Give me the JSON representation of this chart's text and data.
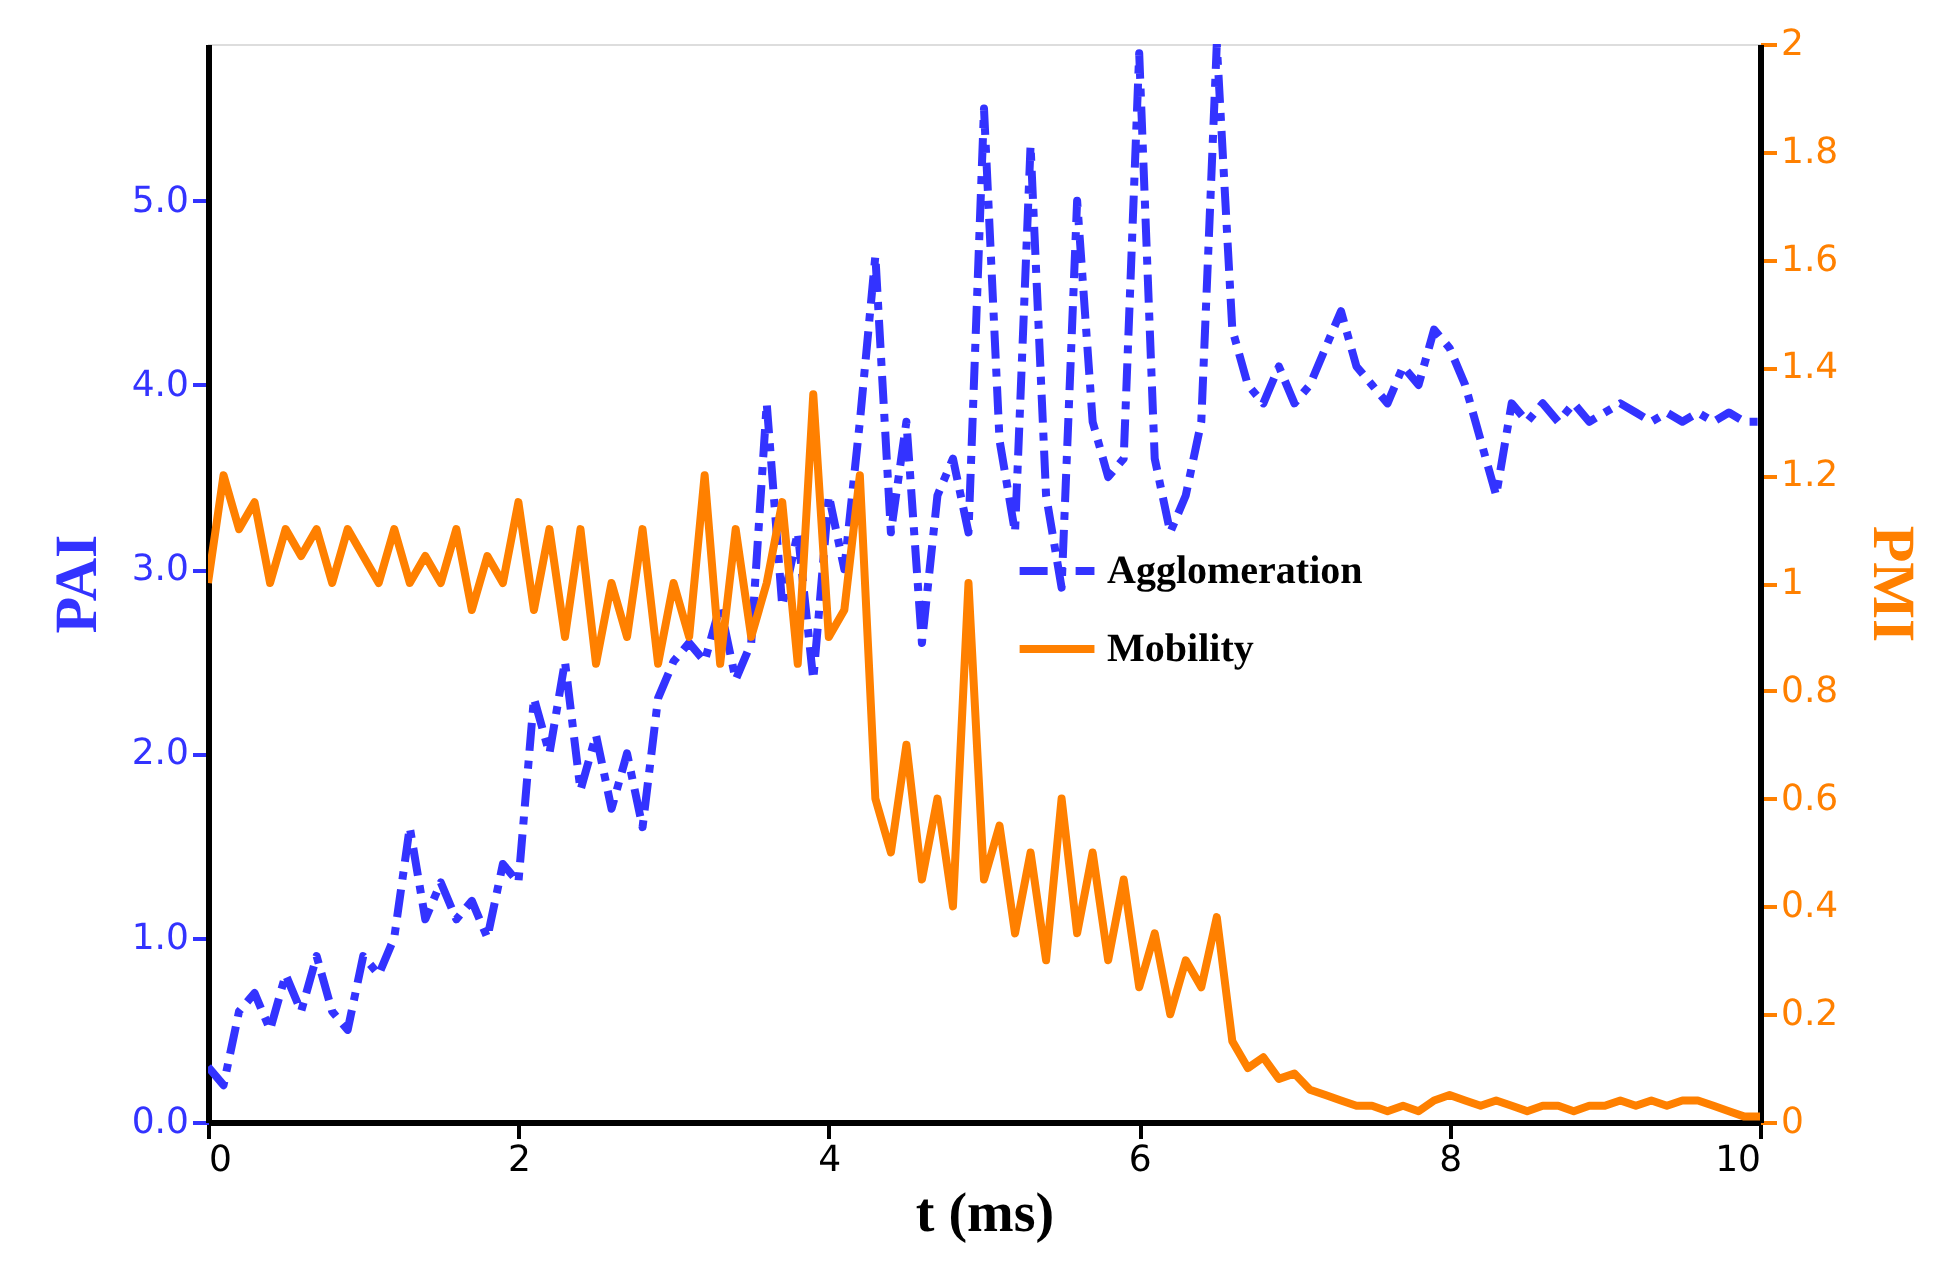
{
  "chart_data": {
    "type": "line",
    "xlabel": "t (ms)",
    "ylabel": "PAI",
    "y2label": "PMI",
    "x": [
      0,
      0.1,
      0.2,
      0.3,
      0.4,
      0.5,
      0.6,
      0.7,
      0.8,
      0.9,
      1,
      1.1,
      1.2,
      1.3,
      1.4,
      1.5,
      1.6,
      1.7,
      1.8,
      1.9,
      2,
      2.1,
      2.2,
      2.3,
      2.4,
      2.5,
      2.6,
      2.7,
      2.8,
      2.9,
      3,
      3.1,
      3.2,
      3.3,
      3.4,
      3.5,
      3.6,
      3.7,
      3.8,
      3.9,
      4,
      4.1,
      4.2,
      4.3,
      4.4,
      4.5,
      4.6,
      4.7,
      4.8,
      4.9,
      5,
      5.1,
      5.2,
      5.3,
      5.4,
      5.5,
      5.6,
      5.7,
      5.8,
      5.9,
      6,
      6.1,
      6.2,
      6.3,
      6.4,
      6.5,
      6.6,
      6.7,
      6.8,
      6.9,
      7,
      7.1,
      7.2,
      7.3,
      7.4,
      7.5,
      7.6,
      7.7,
      7.8,
      7.9,
      8,
      8.1,
      8.2,
      8.3,
      8.4,
      8.5,
      8.6,
      8.7,
      8.8,
      8.9,
      9,
      9.1,
      9.2,
      9.3,
      9.4,
      9.5,
      9.6,
      9.7,
      9.8,
      9.9,
      10
    ],
    "series": [
      {
        "name": "Agglomeration",
        "color": "#3333ff",
        "line_style": "dashed",
        "values": [
          0.3,
          0.2,
          0.6,
          0.7,
          0.5,
          0.8,
          0.6,
          0.9,
          0.6,
          0.5,
          0.9,
          0.8,
          1.0,
          1.6,
          1.1,
          1.3,
          1.1,
          1.2,
          1.0,
          1.4,
          1.3,
          2.3,
          2.0,
          2.5,
          1.8,
          2.1,
          1.7,
          2.0,
          1.6,
          2.3,
          2.5,
          2.6,
          2.5,
          2.8,
          2.4,
          2.6,
          3.9,
          2.8,
          3.2,
          2.4,
          3.4,
          3.0,
          3.8,
          4.7,
          3.2,
          3.8,
          2.6,
          3.4,
          3.6,
          3.2,
          5.5,
          3.7,
          3.2,
          5.3,
          3.4,
          2.9,
          5.0,
          3.8,
          3.5,
          3.6,
          5.8,
          3.6,
          3.2,
          3.4,
          3.8,
          5.85,
          4.3,
          4.0,
          3.9,
          4.1,
          3.9,
          4.0,
          4.2,
          4.4,
          4.1,
          4.0,
          3.9,
          4.1,
          4.0,
          4.3,
          4.2,
          4.0,
          3.7,
          3.4,
          3.9,
          3.8,
          3.9,
          3.8,
          3.9,
          3.8,
          3.85,
          3.9,
          3.85,
          3.8,
          3.85,
          3.8,
          3.85,
          3.8,
          3.85,
          3.8,
          3.8
        ]
      },
      {
        "name": "Mobility",
        "color": "#ff8000",
        "line_style": "solid",
        "axis": "y2",
        "values": [
          1.0,
          1.2,
          1.1,
          1.15,
          1.0,
          1.1,
          1.05,
          1.1,
          1.0,
          1.1,
          1.05,
          1.0,
          1.1,
          1.0,
          1.05,
          1.0,
          1.1,
          0.95,
          1.05,
          1.0,
          1.15,
          0.95,
          1.1,
          0.9,
          1.1,
          0.85,
          1.0,
          0.9,
          1.1,
          0.85,
          1.0,
          0.9,
          1.2,
          0.85,
          1.1,
          0.9,
          1.0,
          1.15,
          0.85,
          1.35,
          0.9,
          0.95,
          1.2,
          0.6,
          0.5,
          0.7,
          0.45,
          0.6,
          0.4,
          1.0,
          0.45,
          0.55,
          0.35,
          0.5,
          0.3,
          0.6,
          0.35,
          0.5,
          0.3,
          0.45,
          0.25,
          0.35,
          0.2,
          0.3,
          0.25,
          0.38,
          0.15,
          0.1,
          0.12,
          0.08,
          0.09,
          0.06,
          0.05,
          0.04,
          0.03,
          0.03,
          0.02,
          0.03,
          0.02,
          0.04,
          0.05,
          0.04,
          0.03,
          0.04,
          0.03,
          0.02,
          0.03,
          0.03,
          0.02,
          0.03,
          0.03,
          0.04,
          0.03,
          0.04,
          0.03,
          0.04,
          0.04,
          0.03,
          0.02,
          0.01,
          0.01
        ]
      }
    ],
    "xlim": [
      0,
      10
    ],
    "xticks": [
      0,
      2,
      4,
      6,
      8,
      10
    ],
    "ylim": [
      0,
      5.85
    ],
    "yticks": [
      {
        "value": 0,
        "label": "0.0"
      },
      {
        "value": 1,
        "label": "1.0"
      },
      {
        "value": 2,
        "label": "2.0"
      },
      {
        "value": 3,
        "label": "3.0"
      },
      {
        "value": 4,
        "label": "4.0"
      },
      {
        "value": 5,
        "label": "5.0"
      }
    ],
    "y2lim": [
      0,
      2
    ],
    "y2ticks": [
      0,
      0.2,
      0.4,
      0.6,
      0.8,
      1,
      1.2,
      1.4,
      1.6,
      1.8,
      2
    ],
    "grid": false,
    "legend": "right",
    "marker": "none"
  }
}
